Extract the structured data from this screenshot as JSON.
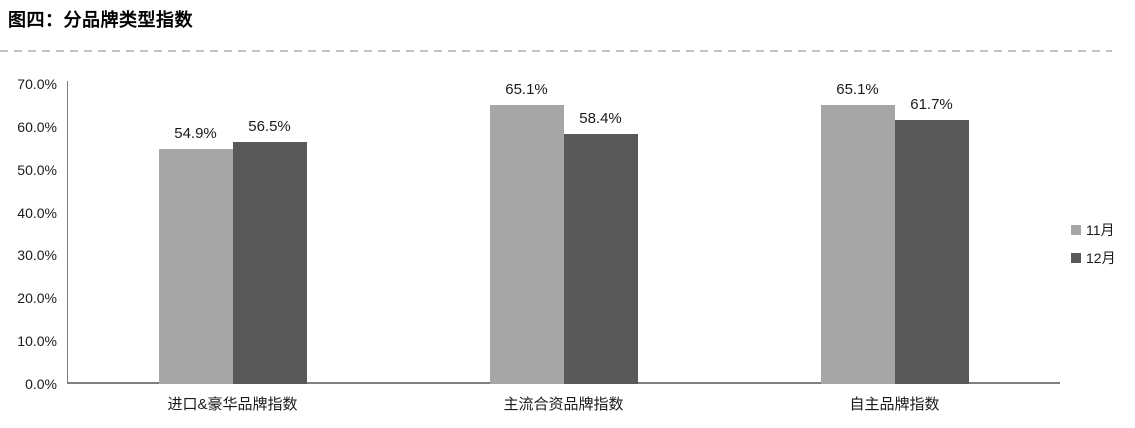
{
  "header": {
    "title": "图四：分品牌类型指数"
  },
  "chart_data": {
    "type": "bar",
    "title": "图四：分品牌类型指数",
    "categories": [
      "进口&豪华品牌指数",
      "主流合资品牌指数",
      "自主品牌指数"
    ],
    "series": [
      {
        "name": "11月",
        "color": "#A6A6A6",
        "values": [
          54.9,
          65.1,
          65.1
        ]
      },
      {
        "name": "12月",
        "color": "#595959",
        "values": [
          56.5,
          58.4,
          61.7
        ]
      }
    ],
    "value_label_format": "percent_one_decimal",
    "ylabel": "",
    "xlabel": "",
    "ylim": [
      0,
      70
    ],
    "y_ticks": [
      "70.0%",
      "60.0%",
      "50.0%",
      "40.0%",
      "30.0%",
      "20.0%",
      "10.0%",
      "0.0%"
    ],
    "grid": false,
    "legend_position": "right"
  },
  "colors": {
    "axis": "#7F7F7F",
    "divider_dash": "#C3C3C3",
    "text": "#1A1A1A",
    "series_nov": "#A6A6A6",
    "series_dec": "#595959"
  }
}
